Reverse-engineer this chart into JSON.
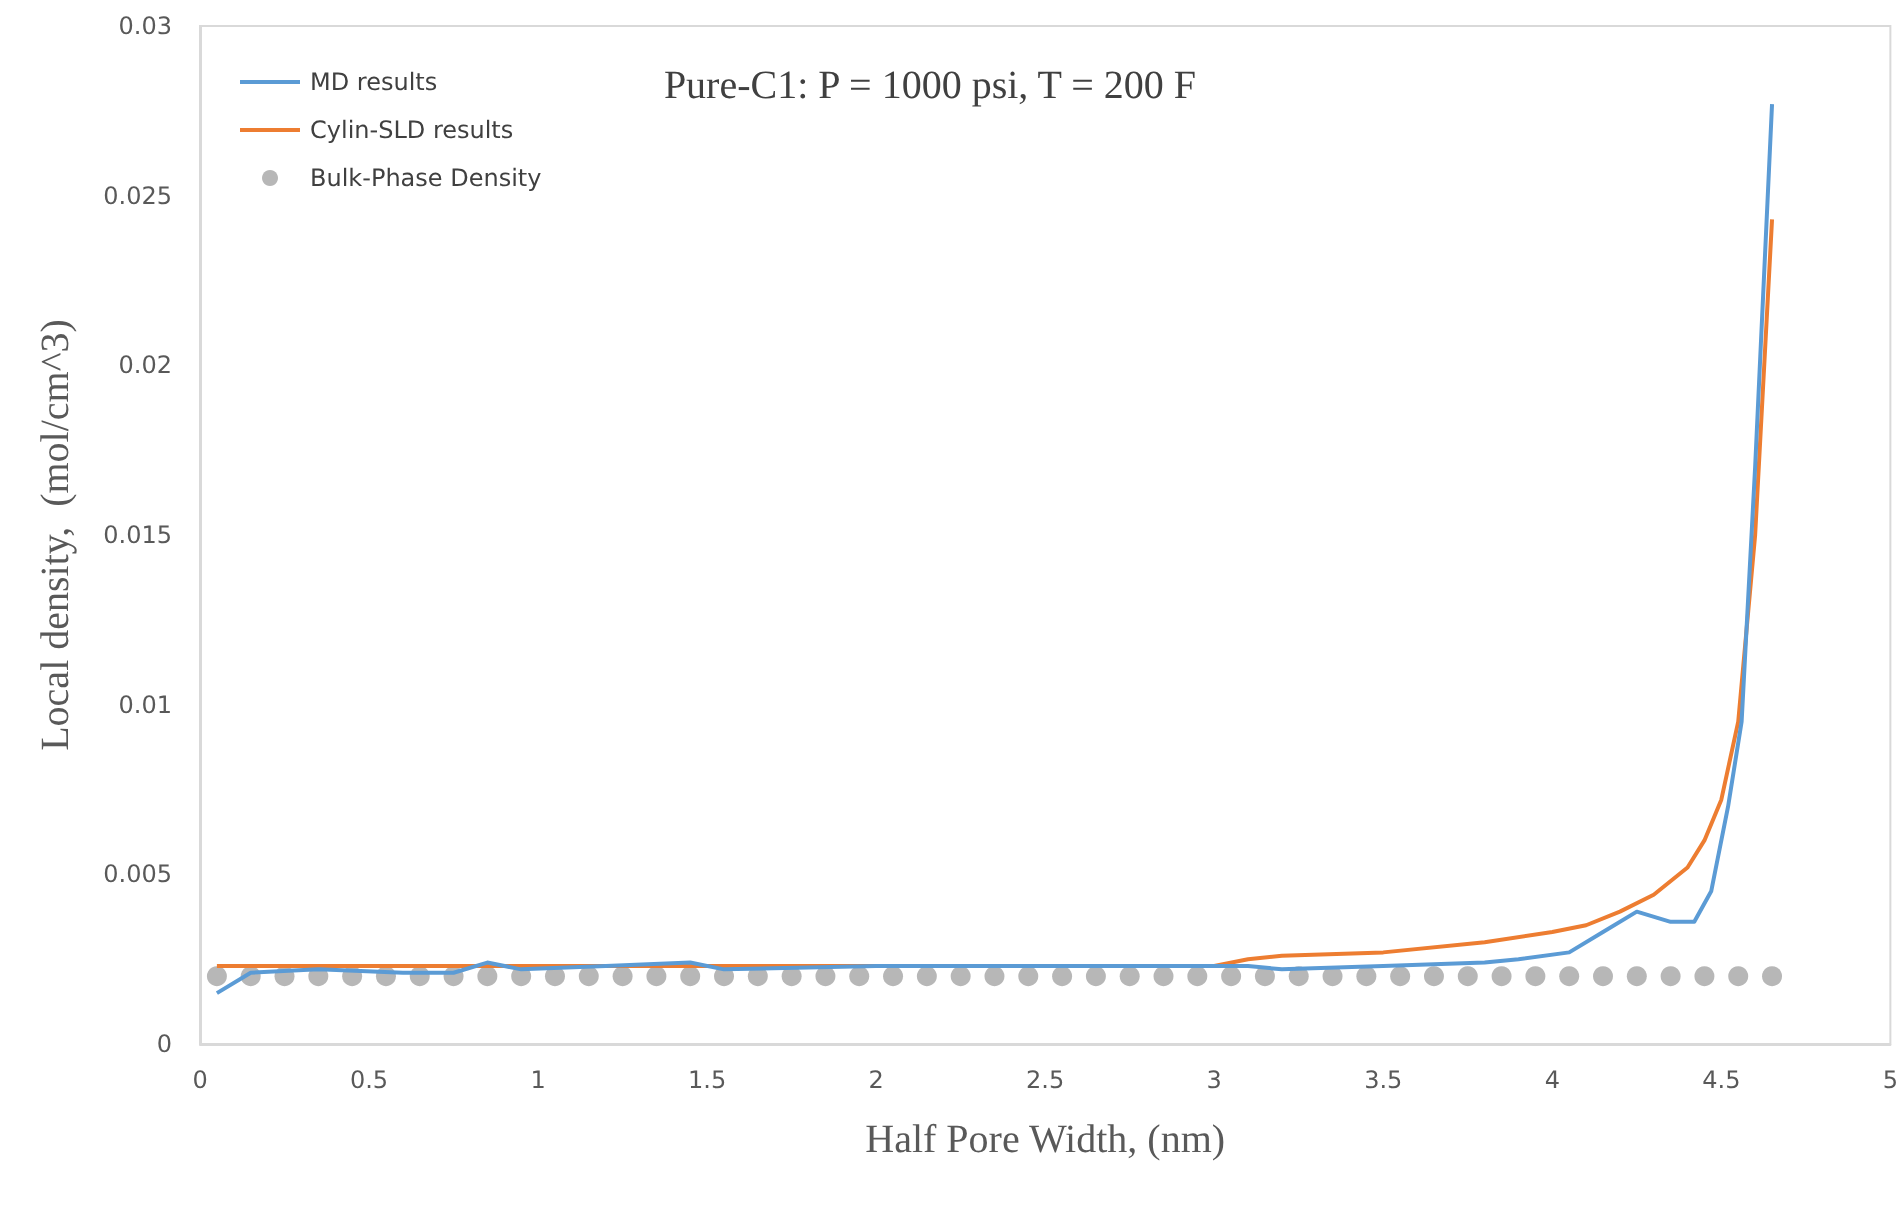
{
  "chart_data": {
    "type": "line",
    "title": "Pure-C1: P = 1000 psi, T = 200 F",
    "xlabel": "Half Pore Width, (nm)",
    "ylabel": "Local density,  (mol/cm^3)",
    "xlim": [
      0,
      5
    ],
    "xticks": [
      0,
      0.5,
      1,
      1.5,
      2,
      2.5,
      3,
      3.5,
      4,
      4.5,
      5
    ],
    "ylim": [
      0,
      0.03
    ],
    "yticks": [
      0,
      0.005,
      0.01,
      0.015,
      0.02,
      0.025,
      0.03
    ],
    "grid": false,
    "legend": "top left",
    "series": [
      {
        "name": "MD results",
        "marker": "none",
        "color": "#5b9bd5",
        "x": [
          0.05,
          0.15,
          0.35,
          0.6,
          0.75,
          0.85,
          0.95,
          1.2,
          1.45,
          1.55,
          2.0,
          2.5,
          3.0,
          3.1,
          3.2,
          3.5,
          3.8,
          3.9,
          4.05,
          4.15,
          4.25,
          4.35,
          4.42,
          4.47,
          4.52,
          4.56,
          4.6,
          4.65
        ],
        "values": [
          0.0015,
          0.0021,
          0.0022,
          0.0021,
          0.0021,
          0.0024,
          0.0022,
          0.0023,
          0.0024,
          0.0022,
          0.0023,
          0.0023,
          0.0023,
          0.0023,
          0.0022,
          0.0023,
          0.0024,
          0.0025,
          0.0027,
          0.0033,
          0.0039,
          0.0036,
          0.0036,
          0.0045,
          0.007,
          0.0095,
          0.017,
          0.0277
        ]
      },
      {
        "name": "Cylin-SLD results",
        "marker": "none",
        "color": "#ed7d31",
        "x": [
          0.05,
          0.5,
          1.0,
          1.5,
          2.0,
          2.5,
          3.0,
          3.1,
          3.2,
          3.5,
          3.8,
          4.0,
          4.1,
          4.2,
          4.3,
          4.4,
          4.45,
          4.5,
          4.55,
          4.6,
          4.65
        ],
        "values": [
          0.0023,
          0.0023,
          0.0023,
          0.0023,
          0.0023,
          0.0023,
          0.0023,
          0.0025,
          0.0026,
          0.0027,
          0.003,
          0.0033,
          0.0035,
          0.0039,
          0.0044,
          0.0052,
          0.006,
          0.0072,
          0.0095,
          0.015,
          0.0243
        ]
      },
      {
        "name": "Bulk-Phase Density",
        "type": "scatter",
        "marker": "circle",
        "color": "#a5a5a5",
        "x": [
          0.05,
          0.15,
          0.25,
          0.35,
          0.45,
          0.55,
          0.65,
          0.75,
          0.85,
          0.95,
          1.05,
          1.15,
          1.25,
          1.35,
          1.45,
          1.55,
          1.65,
          1.75,
          1.85,
          1.95,
          2.05,
          2.15,
          2.25,
          2.35,
          2.45,
          2.55,
          2.65,
          2.75,
          2.85,
          2.95,
          3.05,
          3.15,
          3.25,
          3.35,
          3.45,
          3.55,
          3.65,
          3.75,
          3.85,
          3.95,
          4.05,
          4.15,
          4.25,
          4.35,
          4.45,
          4.55,
          4.65
        ],
        "values": [
          0.002,
          0.002,
          0.002,
          0.002,
          0.002,
          0.002,
          0.002,
          0.002,
          0.002,
          0.002,
          0.002,
          0.002,
          0.002,
          0.002,
          0.002,
          0.002,
          0.002,
          0.002,
          0.002,
          0.002,
          0.002,
          0.002,
          0.002,
          0.002,
          0.002,
          0.002,
          0.002,
          0.002,
          0.002,
          0.002,
          0.002,
          0.002,
          0.002,
          0.002,
          0.002,
          0.002,
          0.002,
          0.002,
          0.002,
          0.002,
          0.002,
          0.002,
          0.002,
          0.002,
          0.002,
          0.002,
          0.002
        ]
      }
    ]
  }
}
